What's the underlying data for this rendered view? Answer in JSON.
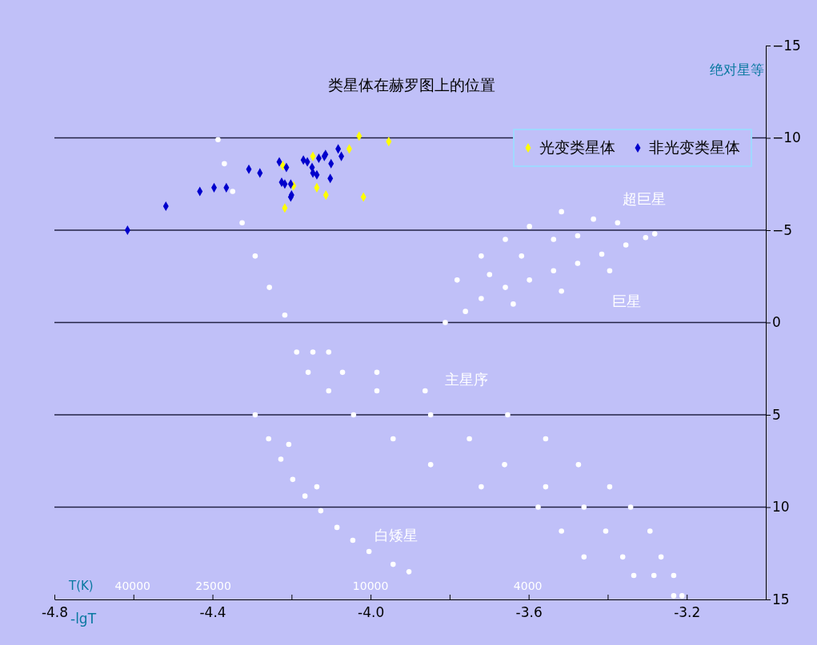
{
  "chart_data": {
    "type": "scatter",
    "title": "类星体在赫罗图上的位置",
    "xlabel": "-lgT",
    "x2label": "T(K)",
    "ylabel": "绝对星等",
    "xlim": [
      -4.8,
      -3.0
    ],
    "xticks": [
      {
        "value": -4.8,
        "label": "-4.8"
      },
      {
        "value": -4.6,
        "label": null
      },
      {
        "value": -4.4,
        "label": "-4.4"
      },
      {
        "value": -4.2,
        "label": null
      },
      {
        "value": -4.0,
        "label": "-4.0"
      },
      {
        "value": -3.8,
        "label": null
      },
      {
        "value": -3.6,
        "label": "-3.6"
      },
      {
        "value": -3.4,
        "label": null
      },
      {
        "value": -3.2,
        "label": "-3.2"
      }
    ],
    "x2lim": [
      63096,
      1000
    ],
    "x2ticks": [
      40000,
      25000,
      10000,
      4000
    ],
    "log": "x2",
    "ylim": [
      15,
      -15
    ],
    "yticks": [
      -15,
      -10,
      -5,
      0,
      5,
      10,
      15
    ],
    "grid": "y",
    "legend": "top right",
    "annotations": [
      "超巨星",
      "巨星",
      "主星序",
      "白矮星"
    ],
    "series": [
      {
        "color": "#ffffff",
        "marker": "circle",
        "x": [
          -4.386,
          -4.37,
          -4.349,
          -4.325,
          -4.292,
          -4.256,
          -4.217,
          -4.187,
          -4.146,
          -4.106,
          -4.158,
          -4.071,
          -3.984,
          -4.106,
          -3.984,
          -3.862,
          -4.043,
          -3.848,
          -3.653,
          -3.943,
          -3.75,
          -3.557,
          -3.848,
          -3.661,
          -3.474,
          -3.72,
          -3.557,
          -3.395,
          -3.576,
          -3.46,
          -3.342,
          -3.517,
          -3.405,
          -3.293,
          -3.46,
          -3.362,
          -3.265,
          -3.334,
          -3.283,
          -3.233,
          -3.233,
          -3.212,
          -3.811,
          -3.76,
          -3.72,
          -3.659,
          -3.598,
          -3.537,
          -3.476,
          -3.415,
          -3.354,
          -3.304,
          -3.281,
          -3.781,
          -3.72,
          -3.659,
          -3.598,
          -3.517,
          -3.436,
          -3.375,
          -3.537,
          -3.618,
          -3.699,
          -3.476,
          -3.639,
          -3.517,
          -3.395,
          -4.292,
          -4.258,
          -4.227,
          -4.197,
          -4.166,
          -4.126,
          -4.085,
          -4.045,
          -4.004,
          -3.943,
          -3.903,
          -4.207,
          -4.136
        ],
        "values": [
          -9.9,
          -8.6,
          -7.1,
          -5.4,
          -3.6,
          -1.9,
          -0.4,
          1.6,
          1.6,
          1.6,
          2.7,
          2.7,
          2.7,
          3.7,
          3.7,
          3.7,
          5.0,
          5.0,
          5.0,
          6.3,
          6.3,
          6.3,
          7.7,
          7.7,
          7.7,
          8.9,
          8.9,
          8.9,
          10.0,
          10.0,
          10.0,
          11.3,
          11.3,
          11.3,
          12.7,
          12.7,
          12.7,
          13.7,
          13.7,
          13.7,
          14.8,
          14.8,
          0.0,
          -0.6,
          -1.3,
          -1.9,
          -2.3,
          -2.8,
          -3.2,
          -3.7,
          -4.2,
          -4.6,
          -4.8,
          -2.3,
          -3.6,
          -4.5,
          -5.2,
          -6.0,
          -5.6,
          -5.4,
          -4.5,
          -3.6,
          -2.6,
          -4.7,
          -1.0,
          -1.7,
          -2.8,
          5.0,
          6.3,
          7.4,
          8.5,
          9.4,
          10.2,
          11.1,
          11.8,
          12.4,
          13.1,
          13.5,
          6.6,
          8.9
        ]
      },
      {
        "name": "光变类星体",
        "color": "#ffff00",
        "marker": "diamond",
        "x": [
          -4.029,
          -3.954,
          -4.054,
          -4.146,
          -4.222,
          -4.195,
          -4.136,
          -4.113,
          -4.018,
          -4.217
        ],
        "values": [
          -10.1,
          -9.8,
          -9.4,
          -9.0,
          -8.5,
          -7.4,
          -7.3,
          -6.9,
          -6.8,
          -6.2
        ]
      },
      {
        "name": "非光变类星体",
        "color": "#0000cc",
        "marker": "diamond",
        "x": [
          -4.615,
          -4.518,
          -4.432,
          -4.396,
          -4.365,
          -4.308,
          -4.28,
          -4.231,
          -4.213,
          -4.225,
          -4.217,
          -4.202,
          -4.2,
          -4.202,
          -4.17,
          -4.16,
          -4.148,
          -4.146,
          -4.136,
          -4.131,
          -4.117,
          -4.114,
          -4.1,
          -4.102,
          -4.082,
          -4.074
        ],
        "values": [
          -5.0,
          -6.3,
          -7.1,
          -7.3,
          -7.3,
          -8.3,
          -8.1,
          -8.7,
          -8.4,
          -7.6,
          -7.5,
          -7.5,
          -6.9,
          -6.8,
          -8.8,
          -8.7,
          -8.4,
          -8.1,
          -8.0,
          -8.9,
          -9.0,
          -9.1,
          -8.6,
          -7.8,
          -9.4,
          -9.0
        ]
      }
    ]
  }
}
